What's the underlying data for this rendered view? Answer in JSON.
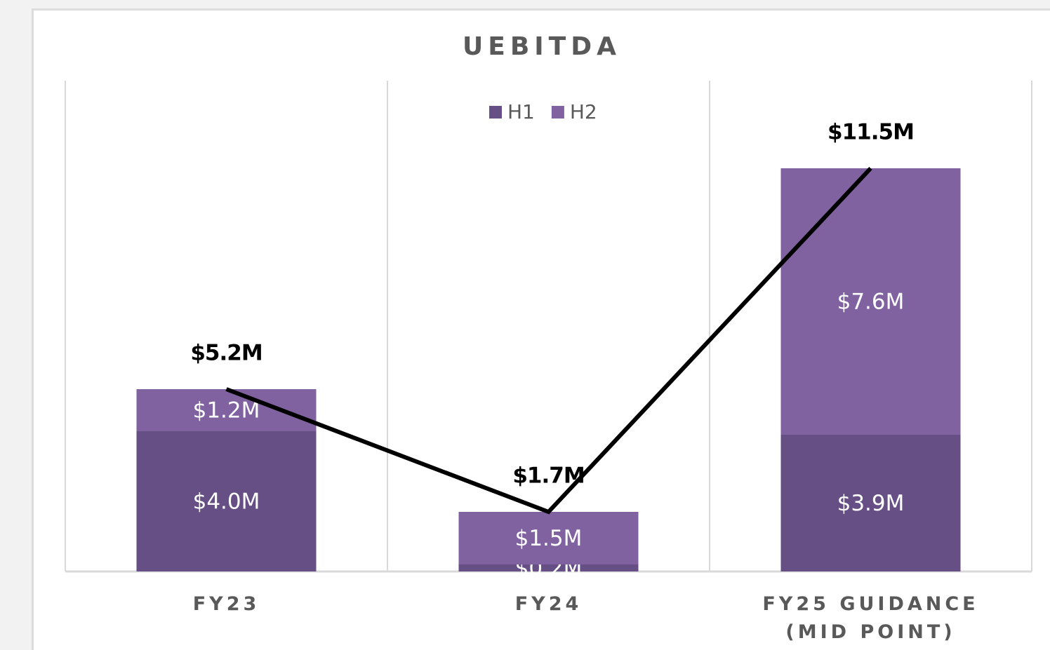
{
  "chart_data": {
    "type": "stacked-bar-line",
    "title": "UEBITDA",
    "categories": [
      "FY23",
      "FY24",
      "FY25 GUIDANCE (MID POINT)"
    ],
    "series": [
      {
        "name": "H1",
        "color": "#654f85",
        "values": [
          4.0,
          0.2,
          3.9
        ],
        "value_labels": [
          "$4.0M",
          "$0.2M",
          "$3.9M"
        ]
      },
      {
        "name": "H2",
        "color": "#8062a0",
        "values": [
          1.2,
          1.5,
          7.6
        ],
        "value_labels": [
          "$1.2M",
          "$1.5M",
          "$7.6M"
        ]
      }
    ],
    "line": {
      "color": "#000000",
      "values": [
        5.2,
        1.7,
        11.5
      ],
      "value_labels": [
        "$5.2M",
        "$1.7M",
        "$11.5M"
      ]
    },
    "ylim": [
      0,
      14
    ],
    "grid": true,
    "legend": "top"
  }
}
